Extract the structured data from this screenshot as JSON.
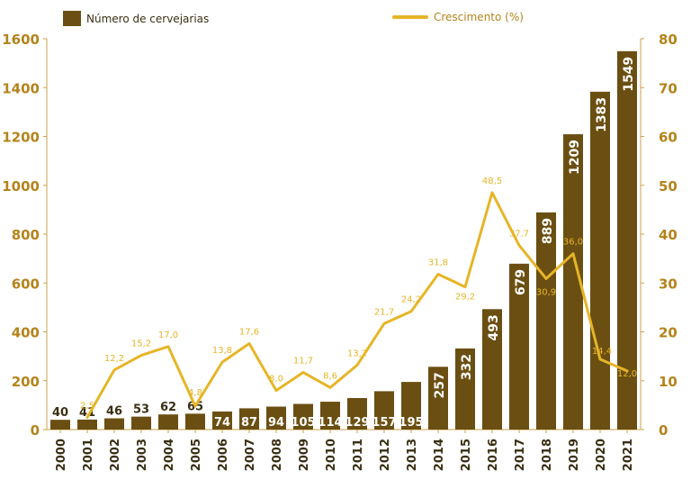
{
  "legend": {
    "bar_label": "Número de cervejarias",
    "line_label": "Crescimento (%)"
  },
  "colors": {
    "bar": "#6b4f12",
    "line": "#e6b527",
    "axis_text": "#b5831b",
    "bar_label_inside": "#ffffff",
    "bar_label_outside": "#3a2f14"
  },
  "chart_data": {
    "type": "bar",
    "categories": [
      "2000",
      "2001",
      "2002",
      "2003",
      "2004",
      "2005",
      "2006",
      "2007",
      "2008",
      "2009",
      "2010",
      "2011",
      "2012",
      "2013",
      "2014",
      "2015",
      "2016",
      "2017",
      "2018",
      "2019",
      "2020",
      "2021"
    ],
    "series": [
      {
        "name": "Número de cervejarias",
        "type": "bar",
        "axis": "left",
        "values": [
          40,
          41,
          46,
          53,
          62,
          65,
          74,
          87,
          94,
          105,
          114,
          129,
          157,
          195,
          257,
          332,
          493,
          679,
          889,
          1209,
          1383,
          1549
        ],
        "labels": [
          "40",
          "41",
          "46",
          "53",
          "62",
          "65",
          "74",
          "87",
          "94",
          "105",
          "114",
          "129",
          "157",
          "195",
          "257",
          "332",
          "493",
          "679",
          "889",
          "1209",
          "1383",
          "1549"
        ]
      },
      {
        "name": "Crescimento (%)",
        "type": "line",
        "axis": "right",
        "values": [
          null,
          2.5,
          12.2,
          15.2,
          17.0,
          4.8,
          13.8,
          17.6,
          8.0,
          11.7,
          8.6,
          13.2,
          21.7,
          24.2,
          31.8,
          29.2,
          48.5,
          37.7,
          30.9,
          36.0,
          14.4,
          12.0
        ],
        "labels": [
          "",
          "2,5",
          "12,2",
          "15,2",
          "17,0",
          "4,8",
          "13,8",
          "17,6",
          "8,0",
          "11,7",
          "8,6",
          "13,2",
          "21,7",
          "24,2",
          "31,8",
          "29,2",
          "48,5",
          "37,7",
          "30,9",
          "36,0",
          "14,4",
          "12,0"
        ]
      }
    ],
    "ylim_left": [
      0,
      1600
    ],
    "yticks_left": [
      "0",
      "200",
      "400",
      "600",
      "800",
      "1000",
      "1200",
      "1400",
      "1600"
    ],
    "ylim_right": [
      0,
      80
    ],
    "yticks_right": [
      "0",
      "10",
      "20",
      "30",
      "40",
      "50",
      "60",
      "70",
      "80"
    ],
    "legend_position": "top",
    "grid": false
  }
}
